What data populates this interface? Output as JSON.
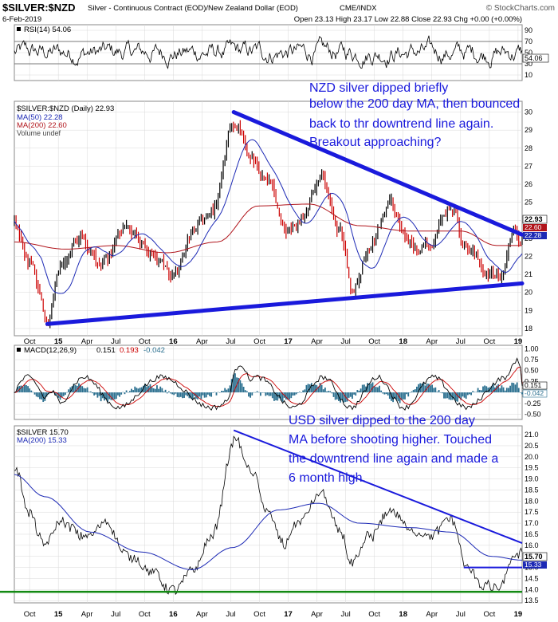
{
  "header": {
    "symbol": "$SILVER:$NZD",
    "description": "Silver - Continuous Contract (EOD)/New Zealand Dollar (EOD)",
    "exchange": "CME/INDX",
    "watermark": "© StockCharts.com",
    "date": "6-Feb-2019",
    "quote": "Open 23.13  High 23.17  Low 22.88  Close 22.93  Chg +0.00 (+0.00%)"
  },
  "x_axis": {
    "labels": [
      "Oct",
      "15",
      "Apr",
      "Jul",
      "Oct",
      "16",
      "Apr",
      "Jul",
      "Oct",
      "17",
      "Apr",
      "Jul",
      "Oct",
      "18",
      "Apr",
      "Jul",
      "Oct",
      "19"
    ],
    "year_labels": [
      "15",
      "16",
      "17",
      "18",
      "19"
    ]
  },
  "chart_data": [
    {
      "type": "line",
      "panel": "rsi",
      "legend": "RSI(14) 54.06",
      "ylim": [
        0,
        100
      ],
      "ticks": [
        10,
        30,
        50,
        70,
        90
      ],
      "reference_lines": [
        30,
        70
      ],
      "last_value_label": "54.06",
      "series": [
        {
          "name": "RSI(14)",
          "last": 54.06
        }
      ]
    },
    {
      "type": "candlestick",
      "panel": "silver_nzd",
      "legend": [
        "$SILVER:$NZD (Daily) 22.93",
        "MA(50) 22.28",
        "MA(200) 22.60",
        "Volume undef"
      ],
      "ylim": [
        17.6,
        30.6
      ],
      "ticks": [
        18,
        19,
        20,
        21,
        22,
        23,
        24,
        25,
        26,
        27,
        28,
        29,
        30
      ],
      "price_labels": [
        "22.93",
        "22.60",
        "22.28"
      ],
      "anchors": [
        {
          "t": 0.0,
          "v": 23.8
        },
        {
          "t": 0.03,
          "v": 21.5
        },
        {
          "t": 0.065,
          "v": 18.5
        },
        {
          "t": 0.09,
          "v": 21.5
        },
        {
          "t": 0.13,
          "v": 23.0
        },
        {
          "t": 0.17,
          "v": 21.4
        },
        {
          "t": 0.22,
          "v": 23.5
        },
        {
          "t": 0.27,
          "v": 22.0
        },
        {
          "t": 0.31,
          "v": 21.0
        },
        {
          "t": 0.355,
          "v": 23.5
        },
        {
          "t": 0.39,
          "v": 24.5
        },
        {
          "t": 0.435,
          "v": 29.5
        },
        {
          "t": 0.47,
          "v": 27.2
        },
        {
          "t": 0.5,
          "v": 26.0
        },
        {
          "t": 0.53,
          "v": 23.5
        },
        {
          "t": 0.56,
          "v": 24.0
        },
        {
          "t": 0.605,
          "v": 26.5
        },
        {
          "t": 0.64,
          "v": 23.5
        },
        {
          "t": 0.665,
          "v": 20.2
        },
        {
          "t": 0.7,
          "v": 22.6
        },
        {
          "t": 0.74,
          "v": 25.0
        },
        {
          "t": 0.78,
          "v": 22.5
        },
        {
          "t": 0.82,
          "v": 23.0
        },
        {
          "t": 0.86,
          "v": 24.8
        },
        {
          "t": 0.89,
          "v": 22.5
        },
        {
          "t": 0.93,
          "v": 21.2
        },
        {
          "t": 0.955,
          "v": 20.7
        },
        {
          "t": 0.985,
          "v": 23.5
        },
        {
          "t": 1.0,
          "v": 22.93
        }
      ],
      "ma200_anchors": [
        {
          "t": 0.0,
          "v": 22.8
        },
        {
          "t": 0.1,
          "v": 22.4
        },
        {
          "t": 0.2,
          "v": 22.6
        },
        {
          "t": 0.3,
          "v": 22.2
        },
        {
          "t": 0.4,
          "v": 22.8
        },
        {
          "t": 0.48,
          "v": 24.8
        },
        {
          "t": 0.58,
          "v": 24.9
        },
        {
          "t": 0.68,
          "v": 23.7
        },
        {
          "t": 0.78,
          "v": 23.4
        },
        {
          "t": 0.88,
          "v": 23.4
        },
        {
          "t": 0.95,
          "v": 22.6
        },
        {
          "t": 1.0,
          "v": 22.6
        }
      ],
      "trendlines": [
        {
          "name": "downtrend",
          "from": {
            "t": 0.432,
            "v": 30.0
          },
          "to": {
            "t": 1.0,
            "v": 23.2
          }
        },
        {
          "name": "uptrend",
          "from": {
            "t": 0.065,
            "v": 18.25
          },
          "to": {
            "t": 1.0,
            "v": 20.5
          }
        }
      ],
      "annotation": "NZD silver dipped briefly below the 200 day MA, then bounced back to thr downtrend line again. Breakout approaching?"
    },
    {
      "type": "line",
      "panel": "macd",
      "legend": {
        "label": "MACD(12,26,9)",
        "macd": "0.151",
        "signal": "0.193",
        "histogram": "-0.042"
      },
      "ylim": [
        -0.62,
        1.08
      ],
      "ticks": [
        1.0,
        0.75,
        0.5,
        0.25,
        -0.25,
        -0.5
      ],
      "price_labels": [
        "0.151",
        "-0.042"
      ],
      "colors": {
        "macd": "#000000",
        "signal": "#cc0000",
        "histogram": "#2a6f8f"
      }
    },
    {
      "type": "line",
      "panel": "silver_usd",
      "legend": [
        "$SILVER 15.70",
        "MA(200) 15.33"
      ],
      "ylim": [
        13.4,
        21.4
      ],
      "ticks": [
        13.5,
        14.0,
        14.5,
        15.0,
        15.5,
        16.0,
        16.5,
        17.0,
        17.5,
        18.0,
        18.5,
        19.0,
        19.5,
        20.0,
        20.5,
        21.0
      ],
      "price_labels": [
        "15.70",
        "15.33"
      ],
      "anchors": [
        {
          "t": 0.0,
          "v": 19.5
        },
        {
          "t": 0.03,
          "v": 17.5
        },
        {
          "t": 0.06,
          "v": 16.0
        },
        {
          "t": 0.09,
          "v": 17.2
        },
        {
          "t": 0.14,
          "v": 16.3
        },
        {
          "t": 0.18,
          "v": 17.0
        },
        {
          "t": 0.22,
          "v": 15.6
        },
        {
          "t": 0.27,
          "v": 14.8
        },
        {
          "t": 0.31,
          "v": 13.9
        },
        {
          "t": 0.355,
          "v": 15.0
        },
        {
          "t": 0.39,
          "v": 16.5
        },
        {
          "t": 0.435,
          "v": 20.8
        },
        {
          "t": 0.47,
          "v": 19.2
        },
        {
          "t": 0.5,
          "v": 17.5
        },
        {
          "t": 0.53,
          "v": 16.0
        },
        {
          "t": 0.56,
          "v": 17.0
        },
        {
          "t": 0.605,
          "v": 18.4
        },
        {
          "t": 0.64,
          "v": 16.8
        },
        {
          "t": 0.665,
          "v": 15.2
        },
        {
          "t": 0.7,
          "v": 16.4
        },
        {
          "t": 0.74,
          "v": 17.5
        },
        {
          "t": 0.78,
          "v": 16.7
        },
        {
          "t": 0.82,
          "v": 16.5
        },
        {
          "t": 0.86,
          "v": 17.2
        },
        {
          "t": 0.89,
          "v": 15.0
        },
        {
          "t": 0.92,
          "v": 14.2
        },
        {
          "t": 0.955,
          "v": 14.1
        },
        {
          "t": 0.985,
          "v": 15.5
        },
        {
          "t": 1.0,
          "v": 15.7
        }
      ],
      "ma200_anchors": [
        {
          "t": 0.0,
          "v": 19.2
        },
        {
          "t": 0.06,
          "v": 18.2
        },
        {
          "t": 0.15,
          "v": 16.6
        },
        {
          "t": 0.25,
          "v": 15.7
        },
        {
          "t": 0.35,
          "v": 14.9
        },
        {
          "t": 0.43,
          "v": 15.9
        },
        {
          "t": 0.52,
          "v": 17.6
        },
        {
          "t": 0.6,
          "v": 17.9
        },
        {
          "t": 0.68,
          "v": 17.0
        },
        {
          "t": 0.78,
          "v": 16.8
        },
        {
          "t": 0.86,
          "v": 16.6
        },
        {
          "t": 0.94,
          "v": 15.5
        },
        {
          "t": 1.0,
          "v": 15.33
        }
      ],
      "trendlines": [
        {
          "name": "downtrend",
          "from": {
            "t": 0.432,
            "v": 21.2
          },
          "to": {
            "t": 1.0,
            "v": 16.1
          }
        },
        {
          "name": "support",
          "from": {
            "t": 0.885,
            "v": 15.0
          },
          "to": {
            "t": 1.0,
            "v": 15.0
          }
        },
        {
          "name": "floor",
          "from": {
            "t": -0.02,
            "v": 13.9
          },
          "to": {
            "t": 1.0,
            "v": 13.9
          }
        }
      ],
      "annotation": "USD silver dipped to the 200 day MA before shooting higher. Touched the downtrend line again and made a 6 month high."
    }
  ],
  "colors": {
    "price_up": "#000000",
    "price_down": "#cc0000",
    "ma50": "#1d2ab5",
    "ma200": "#b0141b",
    "trend": "#1a1adc",
    "annotation": "#1a1adc",
    "floor_line": "#138a13",
    "grid": "#d8d8d8"
  }
}
